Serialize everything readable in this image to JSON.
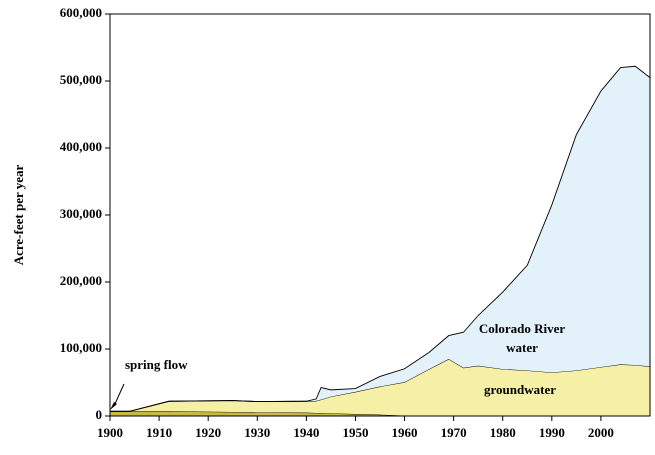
{
  "chart_data": {
    "type": "stacked_area",
    "y_label": "Acre-feet per year",
    "x": [
      1900,
      1904,
      1912,
      1925,
      1930,
      1940,
      1942,
      1943,
      1945,
      1950,
      1955,
      1960,
      1965,
      1969,
      1972,
      1975,
      1980,
      1985,
      1990,
      1995,
      2000,
      2004,
      2007,
      2010
    ],
    "series": [
      {
        "name": "spring flow",
        "color": "#c9b944",
        "values": [
          7000,
          7000,
          7000,
          6000,
          5500,
          5000,
          4500,
          4500,
          4000,
          3000,
          2000,
          500,
          0,
          0,
          0,
          0,
          0,
          0,
          0,
          0,
          0,
          0,
          0,
          0
        ]
      },
      {
        "name": "groundwater",
        "color": "#f6efa6",
        "values": [
          0,
          0,
          15000,
          17000,
          16000,
          17000,
          18000,
          20000,
          25000,
          33000,
          42000,
          50000,
          70000,
          85000,
          72000,
          75000,
          70000,
          68000,
          65000,
          68000,
          73000,
          77000,
          76000,
          74000
        ]
      },
      {
        "name": "Colorado River water",
        "color": "#e2f1fa",
        "values": [
          0,
          0,
          0,
          0,
          0,
          0,
          3000,
          18000,
          10000,
          5000,
          15000,
          20000,
          25000,
          35000,
          53000,
          75000,
          115000,
          157000,
          250000,
          352000,
          412000,
          443000,
          446000,
          431000
        ]
      }
    ],
    "xlim": [
      1900,
      2010
    ],
    "xticks": [
      1900,
      1910,
      1920,
      1930,
      1940,
      1950,
      1960,
      1970,
      1980,
      1990,
      2000
    ],
    "ylim": [
      0,
      600000
    ],
    "yticks": [
      0,
      {
        "value": 100000,
        "label": "100,000"
      },
      {
        "value": 200000,
        "label": "200,000"
      },
      {
        "value": 300000,
        "label": "300,000"
      },
      {
        "value": 400000,
        "label": "400,000"
      },
      {
        "value": 500000,
        "label": "500,000"
      },
      {
        "value": 600000,
        "label": "600,000"
      }
    ],
    "annotations": [
      "spring flow",
      "Colorado River",
      "water",
      "groundwater"
    ]
  }
}
